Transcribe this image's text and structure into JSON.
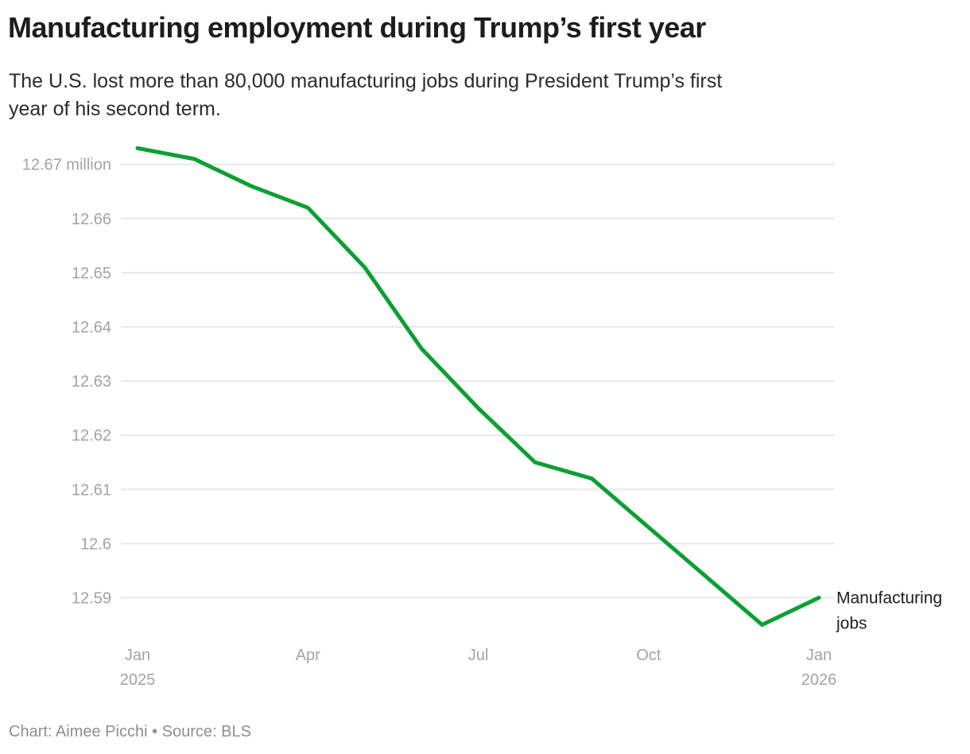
{
  "header": {
    "title": "Manufacturing employment during Trump’s first year",
    "subtitle": "The U.S. lost more than 80,000 manufacturing jobs during President Trump’s first\nyear of his second term."
  },
  "footer": {
    "credit": "Chart: Aimee Picchi • Source: BLS"
  },
  "chart_data": {
    "type": "line",
    "title": "Manufacturing employment during Trump’s first year",
    "unit": "million",
    "grid": true,
    "legend_position": "end-of-line-label",
    "x": [
      "Jan 2025",
      "Feb 2025",
      "Mar 2025",
      "Apr 2025",
      "May 2025",
      "Jun 2025",
      "Jul 2025",
      "Aug 2025",
      "Sep 2025",
      "Oct 2025",
      "Nov 2025",
      "Dec 2025",
      "Jan 2026"
    ],
    "series": [
      {
        "name": "Manufacturing jobs",
        "color": "#0aa032",
        "values": [
          12.673,
          12.671,
          12.666,
          12.662,
          12.651,
          12.636,
          12.625,
          12.615,
          12.612,
          12.603,
          12.594,
          12.585,
          12.59
        ]
      }
    ],
    "ylim": [
      12.585,
      12.674
    ],
    "y_ticks": [
      {
        "value": 12.67,
        "label": "12.67 million"
      },
      {
        "value": 12.66,
        "label": "12.66"
      },
      {
        "value": 12.65,
        "label": "12.65"
      },
      {
        "value": 12.64,
        "label": "12.64"
      },
      {
        "value": 12.63,
        "label": "12.63"
      },
      {
        "value": 12.62,
        "label": "12.62"
      },
      {
        "value": 12.61,
        "label": "12.61"
      },
      {
        "value": 12.6,
        "label": "12.6"
      },
      {
        "value": 12.59,
        "label": "12.59"
      }
    ],
    "x_ticks": [
      {
        "index": 0,
        "lines": [
          "Jan",
          "2025"
        ]
      },
      {
        "index": 3,
        "lines": [
          "Apr"
        ]
      },
      {
        "index": 6,
        "lines": [
          "Jul"
        ]
      },
      {
        "index": 9,
        "lines": [
          "Oct"
        ]
      },
      {
        "index": 12,
        "lines": [
          "Jan",
          "2026"
        ]
      }
    ],
    "annotation": {
      "lines": [
        "Manufacturing",
        "jobs"
      ]
    },
    "colors": {
      "line": "#0aa032",
      "gridline": "#e8e8e8",
      "axis_label": "#a3a3a3",
      "annotation": "#1d1d1d"
    }
  }
}
